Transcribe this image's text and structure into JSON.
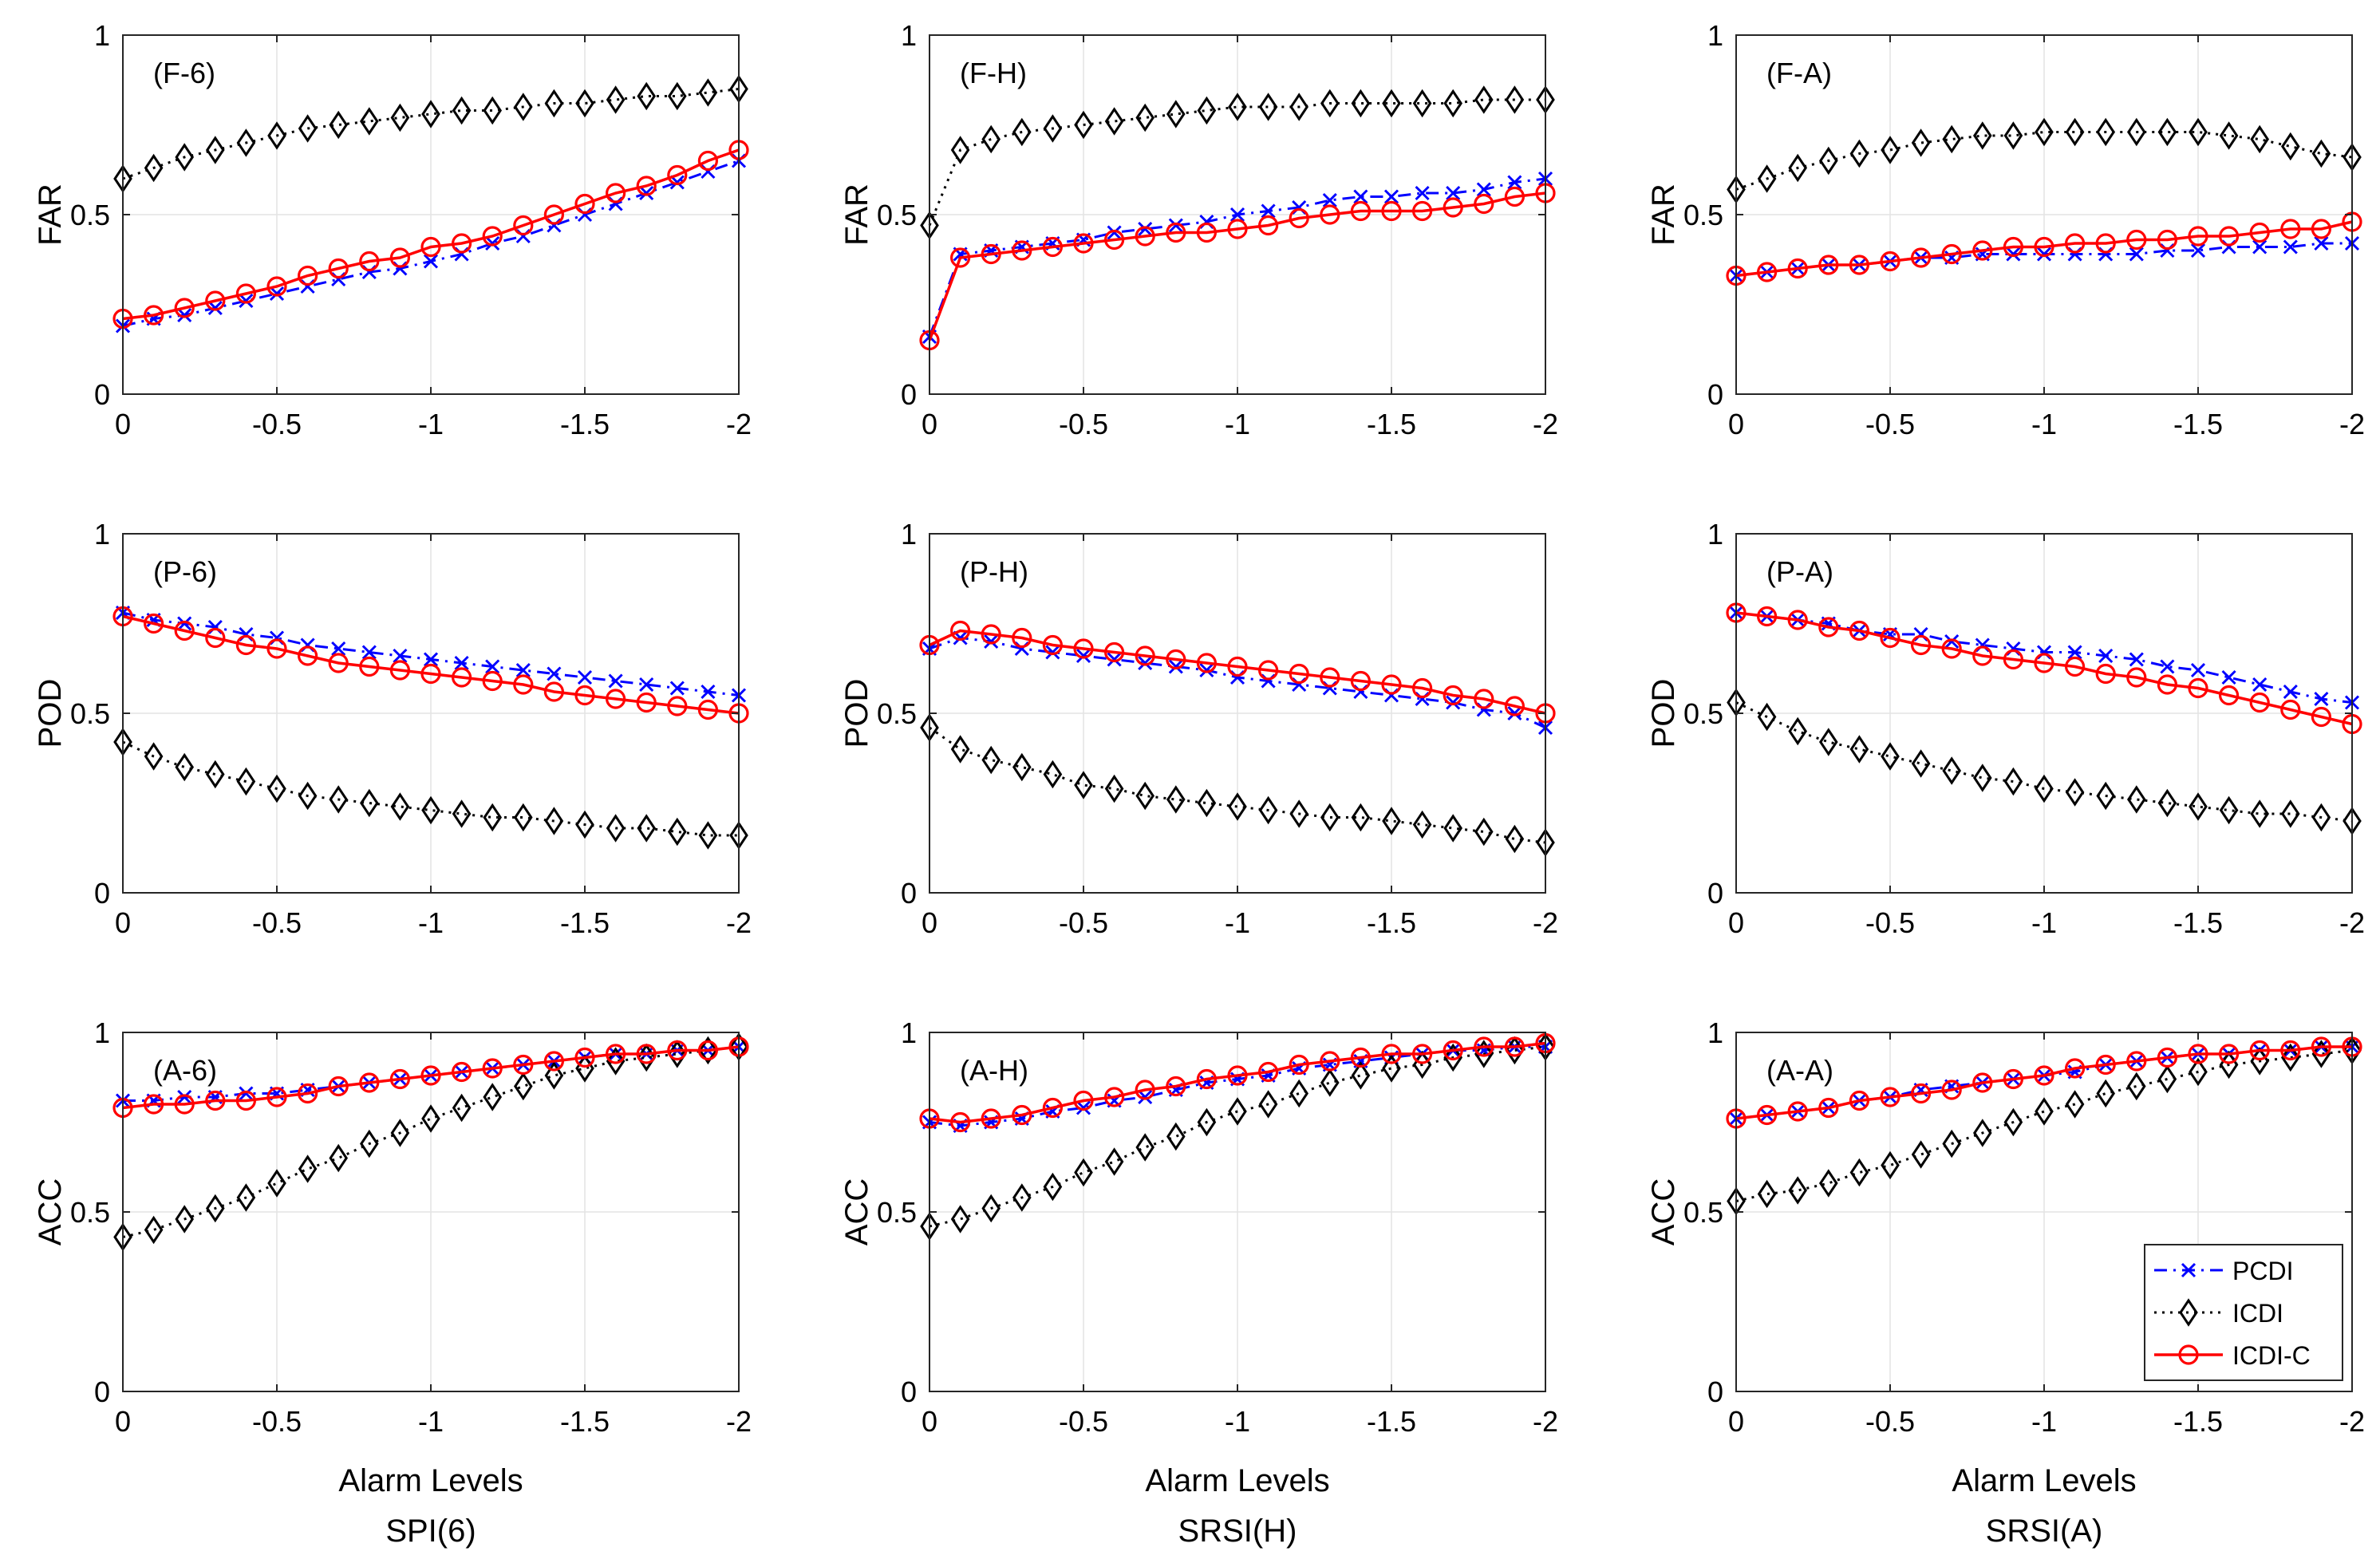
{
  "figure": {
    "legend": [
      "PCDI",
      "ICDI",
      "ICDI-C"
    ],
    "column_labels": [
      "SPI(6)",
      "SRSI(H)",
      "SRSI(A)"
    ],
    "x_axis_label": "Alarm Levels"
  },
  "chart_data": {
    "type": "line",
    "x": [
      0,
      -0.1,
      -0.2,
      -0.3,
      -0.4,
      -0.5,
      -0.6,
      -0.7,
      -0.8,
      -0.9,
      -1.0,
      -1.1,
      -1.2,
      -1.3,
      -1.4,
      -1.5,
      -1.6,
      -1.7,
      -1.8,
      -1.9,
      -2.0
    ],
    "xlim": [
      0,
      -2
    ],
    "ylim": [
      0,
      1
    ],
    "xticks": [
      0,
      -0.5,
      -1,
      -1.5,
      -2
    ],
    "yticks": [
      0,
      0.5,
      1
    ],
    "grid": true,
    "legend_location": "bottom-right of panel A-A",
    "series_styles": [
      {
        "name": "PCDI",
        "color": "#0000ff",
        "line": "dash-dot",
        "marker": "x"
      },
      {
        "name": "ICDI",
        "color": "#000000",
        "line": "dotted",
        "marker": "diamond"
      },
      {
        "name": "ICDI-C",
        "color": "#ff0000",
        "line": "solid",
        "marker": "circle"
      }
    ],
    "panels": [
      {
        "id": "F-6",
        "label": "(F-6)",
        "ylabel": "FAR",
        "xlabel": "Alarm Levels",
        "column": "SPI(6)",
        "series": [
          {
            "name": "PCDI",
            "values": [
              0.19,
              0.21,
              0.22,
              0.24,
              0.26,
              0.28,
              0.3,
              0.32,
              0.34,
              0.35,
              0.37,
              0.39,
              0.42,
              0.44,
              0.47,
              0.5,
              0.53,
              0.56,
              0.59,
              0.62,
              0.65
            ]
          },
          {
            "name": "ICDI",
            "values": [
              0.6,
              0.63,
              0.66,
              0.68,
              0.7,
              0.72,
              0.74,
              0.75,
              0.76,
              0.77,
              0.78,
              0.79,
              0.79,
              0.8,
              0.81,
              0.81,
              0.82,
              0.83,
              0.83,
              0.84,
              0.85
            ]
          },
          {
            "name": "ICDI-C",
            "values": [
              0.21,
              0.22,
              0.24,
              0.26,
              0.28,
              0.3,
              0.33,
              0.35,
              0.37,
              0.38,
              0.41,
              0.42,
              0.44,
              0.47,
              0.5,
              0.53,
              0.56,
              0.58,
              0.61,
              0.65,
              0.68
            ]
          }
        ]
      },
      {
        "id": "F-H",
        "label": "(F-H)",
        "ylabel": "FAR",
        "xlabel": "Alarm Levels",
        "column": "SRSI(H)",
        "series": [
          {
            "name": "PCDI",
            "values": [
              0.16,
              0.39,
              0.4,
              0.41,
              0.42,
              0.43,
              0.45,
              0.46,
              0.47,
              0.48,
              0.5,
              0.51,
              0.52,
              0.54,
              0.55,
              0.55,
              0.56,
              0.56,
              0.57,
              0.59,
              0.6
            ]
          },
          {
            "name": "ICDI",
            "values": [
              0.47,
              0.68,
              0.71,
              0.73,
              0.74,
              0.75,
              0.76,
              0.77,
              0.78,
              0.79,
              0.8,
              0.8,
              0.8,
              0.81,
              0.81,
              0.81,
              0.81,
              0.81,
              0.82,
              0.82,
              0.82
            ]
          },
          {
            "name": "ICDI-C",
            "values": [
              0.15,
              0.38,
              0.39,
              0.4,
              0.41,
              0.42,
              0.43,
              0.44,
              0.45,
              0.45,
              0.46,
              0.47,
              0.49,
              0.5,
              0.51,
              0.51,
              0.51,
              0.52,
              0.53,
              0.55,
              0.56
            ]
          }
        ]
      },
      {
        "id": "F-A",
        "label": "(F-A)",
        "ylabel": "FAR",
        "xlabel": "Alarm Levels",
        "column": "SRSI(A)",
        "series": [
          {
            "name": "PCDI",
            "values": [
              0.33,
              0.34,
              0.35,
              0.36,
              0.36,
              0.37,
              0.38,
              0.38,
              0.39,
              0.39,
              0.39,
              0.39,
              0.39,
              0.39,
              0.4,
              0.4,
              0.41,
              0.41,
              0.41,
              0.42,
              0.42
            ]
          },
          {
            "name": "ICDI",
            "values": [
              0.57,
              0.6,
              0.63,
              0.65,
              0.67,
              0.68,
              0.7,
              0.71,
              0.72,
              0.72,
              0.73,
              0.73,
              0.73,
              0.73,
              0.73,
              0.73,
              0.72,
              0.71,
              0.69,
              0.67,
              0.66
            ]
          },
          {
            "name": "ICDI-C",
            "values": [
              0.33,
              0.34,
              0.35,
              0.36,
              0.36,
              0.37,
              0.38,
              0.39,
              0.4,
              0.41,
              0.41,
              0.42,
              0.42,
              0.43,
              0.43,
              0.44,
              0.44,
              0.45,
              0.46,
              0.46,
              0.48
            ]
          }
        ]
      },
      {
        "id": "P-6",
        "label": "(P-6)",
        "ylabel": "POD",
        "xlabel": "Alarm Levels",
        "column": "SPI(6)",
        "series": [
          {
            "name": "PCDI",
            "values": [
              0.78,
              0.76,
              0.75,
              0.74,
              0.72,
              0.71,
              0.69,
              0.68,
              0.67,
              0.66,
              0.65,
              0.64,
              0.63,
              0.62,
              0.61,
              0.6,
              0.59,
              0.58,
              0.57,
              0.56,
              0.55
            ]
          },
          {
            "name": "ICDI",
            "values": [
              0.42,
              0.38,
              0.35,
              0.33,
              0.31,
              0.29,
              0.27,
              0.26,
              0.25,
              0.24,
              0.23,
              0.22,
              0.21,
              0.21,
              0.2,
              0.19,
              0.18,
              0.18,
              0.17,
              0.16,
              0.16
            ]
          },
          {
            "name": "ICDI-C",
            "values": [
              0.77,
              0.75,
              0.73,
              0.71,
              0.69,
              0.68,
              0.66,
              0.64,
              0.63,
              0.62,
              0.61,
              0.6,
              0.59,
              0.58,
              0.56,
              0.55,
              0.54,
              0.53,
              0.52,
              0.51,
              0.5
            ]
          }
        ]
      },
      {
        "id": "P-H",
        "label": "(P-H)",
        "ylabel": "POD",
        "xlabel": "Alarm Levels",
        "column": "SRSI(H)",
        "series": [
          {
            "name": "PCDI",
            "values": [
              0.68,
              0.71,
              0.7,
              0.68,
              0.67,
              0.66,
              0.65,
              0.64,
              0.63,
              0.62,
              0.6,
              0.59,
              0.58,
              0.57,
              0.56,
              0.55,
              0.54,
              0.53,
              0.51,
              0.5,
              0.46
            ]
          },
          {
            "name": "ICDI",
            "values": [
              0.46,
              0.4,
              0.37,
              0.35,
              0.33,
              0.3,
              0.29,
              0.27,
              0.26,
              0.25,
              0.24,
              0.23,
              0.22,
              0.21,
              0.21,
              0.2,
              0.19,
              0.18,
              0.17,
              0.15,
              0.14
            ]
          },
          {
            "name": "ICDI-C",
            "values": [
              0.69,
              0.73,
              0.72,
              0.71,
              0.69,
              0.68,
              0.67,
              0.66,
              0.65,
              0.64,
              0.63,
              0.62,
              0.61,
              0.6,
              0.59,
              0.58,
              0.57,
              0.55,
              0.54,
              0.52,
              0.5
            ]
          }
        ]
      },
      {
        "id": "P-A",
        "label": "(P-A)",
        "ylabel": "POD",
        "xlabel": "Alarm Levels",
        "column": "SRSI(A)",
        "series": [
          {
            "name": "PCDI",
            "values": [
              0.78,
              0.77,
              0.76,
              0.75,
              0.73,
              0.72,
              0.72,
              0.7,
              0.69,
              0.68,
              0.67,
              0.67,
              0.66,
              0.65,
              0.63,
              0.62,
              0.6,
              0.58,
              0.56,
              0.54,
              0.53
            ]
          },
          {
            "name": "ICDI",
            "values": [
              0.53,
              0.49,
              0.45,
              0.42,
              0.4,
              0.38,
              0.36,
              0.34,
              0.32,
              0.31,
              0.29,
              0.28,
              0.27,
              0.26,
              0.25,
              0.24,
              0.23,
              0.22,
              0.22,
              0.21,
              0.2
            ]
          },
          {
            "name": "ICDI-C",
            "values": [
              0.78,
              0.77,
              0.76,
              0.74,
              0.73,
              0.71,
              0.69,
              0.68,
              0.66,
              0.65,
              0.64,
              0.63,
              0.61,
              0.6,
              0.58,
              0.57,
              0.55,
              0.53,
              0.51,
              0.49,
              0.47
            ]
          }
        ]
      },
      {
        "id": "A-6",
        "label": "(A-6)",
        "ylabel": "ACC",
        "xlabel": "Alarm Levels",
        "column": "SPI(6)",
        "series": [
          {
            "name": "PCDI",
            "values": [
              0.81,
              0.81,
              0.82,
              0.82,
              0.83,
              0.83,
              0.84,
              0.85,
              0.86,
              0.87,
              0.88,
              0.89,
              0.9,
              0.91,
              0.92,
              0.93,
              0.94,
              0.94,
              0.95,
              0.95,
              0.96
            ]
          },
          {
            "name": "ICDI",
            "values": [
              0.43,
              0.45,
              0.48,
              0.51,
              0.54,
              0.58,
              0.62,
              0.65,
              0.69,
              0.72,
              0.76,
              0.79,
              0.82,
              0.85,
              0.88,
              0.9,
              0.92,
              0.93,
              0.94,
              0.95,
              0.96
            ]
          },
          {
            "name": "ICDI-C",
            "values": [
              0.79,
              0.8,
              0.8,
              0.81,
              0.81,
              0.82,
              0.83,
              0.85,
              0.86,
              0.87,
              0.88,
              0.89,
              0.9,
              0.91,
              0.92,
              0.93,
              0.94,
              0.94,
              0.95,
              0.95,
              0.96
            ]
          }
        ]
      },
      {
        "id": "A-H",
        "label": "(A-H)",
        "ylabel": "ACC",
        "xlabel": "Alarm Levels",
        "column": "SRSI(H)",
        "series": [
          {
            "name": "PCDI",
            "values": [
              0.75,
              0.74,
              0.75,
              0.76,
              0.78,
              0.79,
              0.81,
              0.82,
              0.84,
              0.86,
              0.87,
              0.88,
              0.9,
              0.91,
              0.92,
              0.93,
              0.94,
              0.95,
              0.95,
              0.96,
              0.96
            ]
          },
          {
            "name": "ICDI",
            "values": [
              0.46,
              0.48,
              0.51,
              0.54,
              0.57,
              0.61,
              0.64,
              0.68,
              0.71,
              0.75,
              0.78,
              0.8,
              0.83,
              0.86,
              0.88,
              0.9,
              0.91,
              0.93,
              0.94,
              0.95,
              0.96
            ]
          },
          {
            "name": "ICDI-C",
            "values": [
              0.76,
              0.75,
              0.76,
              0.77,
              0.79,
              0.81,
              0.82,
              0.84,
              0.85,
              0.87,
              0.88,
              0.89,
              0.91,
              0.92,
              0.93,
              0.94,
              0.94,
              0.95,
              0.96,
              0.96,
              0.97
            ]
          }
        ]
      },
      {
        "id": "A-A",
        "label": "(A-A)",
        "ylabel": "ACC",
        "xlabel": "Alarm Levels",
        "column": "SRSI(A)",
        "series": [
          {
            "name": "PCDI",
            "values": [
              0.76,
              0.77,
              0.78,
              0.79,
              0.81,
              0.82,
              0.84,
              0.85,
              0.86,
              0.87,
              0.88,
              0.89,
              0.91,
              0.92,
              0.93,
              0.94,
              0.94,
              0.95,
              0.95,
              0.96,
              0.96
            ]
          },
          {
            "name": "ICDI",
            "values": [
              0.53,
              0.55,
              0.56,
              0.58,
              0.61,
              0.63,
              0.66,
              0.69,
              0.72,
              0.75,
              0.78,
              0.8,
              0.83,
              0.85,
              0.87,
              0.89,
              0.91,
              0.92,
              0.93,
              0.94,
              0.95
            ]
          },
          {
            "name": "ICDI-C",
            "values": [
              0.76,
              0.77,
              0.78,
              0.79,
              0.81,
              0.82,
              0.83,
              0.84,
              0.86,
              0.87,
              0.88,
              0.9,
              0.91,
              0.92,
              0.93,
              0.94,
              0.94,
              0.95,
              0.95,
              0.96,
              0.96
            ]
          }
        ]
      }
    ]
  }
}
